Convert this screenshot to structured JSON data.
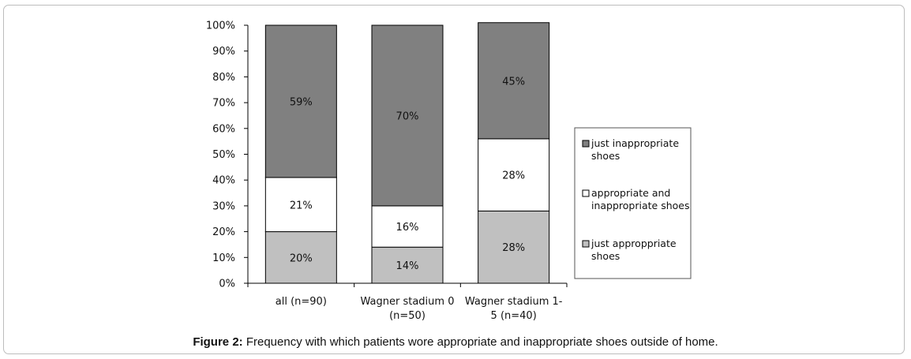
{
  "chart_data": {
    "type": "bar",
    "stacked": true,
    "categories": [
      "all (n=90)",
      "Wagner stadium 0 (n=50)",
      "Wagner stadium 1-5 (n=40)"
    ],
    "category_lines": [
      [
        "all (n=90)"
      ],
      [
        "Wagner stadium 0",
        "(n=50)"
      ],
      [
        "Wagner stadium 1-",
        "5 (n=40)"
      ]
    ],
    "series": [
      {
        "name": "just approppriate shoes",
        "legend_lines": [
          "just approppriate",
          "shoes"
        ],
        "values": [
          20,
          14,
          28
        ],
        "labels": [
          "20%",
          "14%",
          "28%"
        ],
        "color": "#c0c0c0"
      },
      {
        "name": "appropriate and inappropriate shoes",
        "legend_lines": [
          "appropriate and",
          "inappropriate shoes"
        ],
        "values": [
          21,
          16,
          28
        ],
        "labels": [
          "21%",
          "16%",
          "28%"
        ],
        "color": "#ffffff"
      },
      {
        "name": "just inappropriate shoes",
        "legend_lines": [
          "just inappropriate",
          "shoes"
        ],
        "values": [
          59,
          70,
          45
        ],
        "labels": [
          "59%",
          "70%",
          "45%"
        ],
        "color": "#808080"
      }
    ],
    "ylim": [
      0,
      100
    ],
    "yticks": [
      "0%",
      "10%",
      "20%",
      "30%",
      "40%",
      "50%",
      "60%",
      "70%",
      "80%",
      "90%",
      "100%"
    ],
    "xlabel": "",
    "ylabel": "",
    "grid": false,
    "legend_position": "right"
  },
  "caption": {
    "label": "Figure 2:",
    "text": " Frequency with which patients wore appropriate and inappropriate shoes outside of home."
  }
}
